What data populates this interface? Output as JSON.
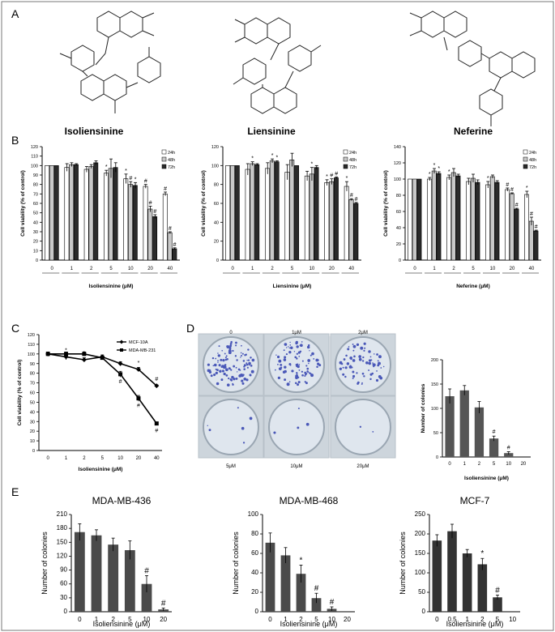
{
  "panels": {
    "A": "A",
    "B": "B",
    "C": "C",
    "D": "D",
    "E": "E"
  },
  "structures": [
    {
      "name": "Isoliensinine"
    },
    {
      "name": "Liensinine"
    },
    {
      "name": "Neferine"
    }
  ],
  "colors": {
    "h24": "#ffffff",
    "h48": "#c8c8c8",
    "h72": "#2a2a2a",
    "bar_gray": "#4a4a4a",
    "bar_dark": "#333333",
    "plate_bg": "#dfe6ee",
    "colony": "#4a58b8"
  },
  "plates": {
    "top_labels": [
      "0",
      "1μM",
      "2μM"
    ],
    "bottom_labels": [
      "5μM",
      "10μM",
      "20μM"
    ]
  },
  "chart_data": [
    {
      "id": "B1",
      "type": "bar",
      "ylabel": "Cell viability (% of control)",
      "xlabel": "Isoliensinine (μM)",
      "categories": [
        "0",
        "1",
        "2",
        "5",
        "10",
        "20",
        "40"
      ],
      "ylim": [
        0,
        120
      ],
      "yticks": [
        0,
        10,
        20,
        30,
        40,
        50,
        60,
        70,
        80,
        90,
        100,
        110,
        120
      ],
      "legend": [
        "24h",
        "48h",
        "72h"
      ],
      "series": [
        {
          "name": "24h",
          "values": [
            100,
            98,
            96,
            92,
            86,
            78,
            70
          ],
          "errors": [
            0,
            4,
            3,
            3,
            5,
            2,
            2
          ]
        },
        {
          "name": "48h",
          "values": [
            100,
            101,
            99,
            97,
            80,
            54,
            29
          ],
          "errors": [
            0,
            2,
            2,
            10,
            3,
            3,
            1
          ]
        },
        {
          "name": "72h",
          "values": [
            100,
            101,
            103,
            98,
            79,
            46,
            12
          ],
          "errors": [
            0,
            1,
            2,
            5,
            3,
            2,
            1
          ]
        }
      ],
      "marks": [
        [
          "",
          "",
          "",
          "*",
          "*",
          "#",
          "#"
        ],
        [
          "",
          "",
          "",
          "",
          "#",
          "#",
          "#"
        ],
        [
          "",
          "",
          "",
          "",
          "*",
          "#",
          "#"
        ]
      ]
    },
    {
      "id": "B2",
      "type": "bar",
      "ylabel": "Cell viability (% of control)",
      "xlabel": "Liensinine (μM)",
      "categories": [
        "0",
        "1",
        "2",
        "5",
        "10",
        "20",
        "40"
      ],
      "ylim": [
        0,
        120
      ],
      "yticks": [
        0,
        20,
        40,
        60,
        80,
        100,
        120
      ],
      "legend": [
        "24h",
        "48h",
        "72h"
      ],
      "series": [
        {
          "name": "24h",
          "values": [
            100,
            96,
            97,
            93,
            89,
            82,
            78
          ],
          "errors": [
            0,
            6,
            6,
            8,
            5,
            3,
            5
          ]
        },
        {
          "name": "48h",
          "values": [
            100,
            102,
            105,
            106,
            91,
            83,
            64
          ],
          "errors": [
            0,
            2,
            2,
            7,
            7,
            3,
            1
          ]
        },
        {
          "name": "72h",
          "values": [
            100,
            101,
            104,
            100,
            98,
            87,
            60
          ],
          "errors": [
            0,
            1,
            1,
            0,
            2,
            1,
            1
          ]
        }
      ],
      "marks": [
        [
          "",
          "",
          "",
          "",
          "",
          "*",
          "*"
        ],
        [
          "",
          "*",
          "*",
          "",
          "*",
          "#",
          "#"
        ],
        [
          "",
          "",
          "*",
          "",
          "",
          "#",
          "#"
        ]
      ]
    },
    {
      "id": "B3",
      "type": "bar",
      "ylabel": "Cell viability (% of control)",
      "xlabel": "Neferine (μM)",
      "categories": [
        "0",
        "1",
        "2",
        "5",
        "10",
        "20",
        "40"
      ],
      "ylim": [
        0,
        140
      ],
      "yticks": [
        0,
        20,
        40,
        60,
        80,
        100,
        120,
        140
      ],
      "legend": [
        "24h",
        "48h",
        "72h"
      ],
      "series": [
        {
          "name": "24h",
          "values": [
            100,
            100,
            102,
            97,
            93,
            87,
            81
          ],
          "errors": [
            0,
            2,
            3,
            4,
            4,
            2,
            4
          ]
        },
        {
          "name": "48h",
          "values": [
            100,
            110,
            108,
            101,
            103,
            82,
            48
          ],
          "errors": [
            0,
            3,
            5,
            5,
            2,
            1,
            5
          ]
        },
        {
          "name": "72h",
          "values": [
            100,
            107,
            104,
            96,
            96,
            63,
            36
          ],
          "errors": [
            0,
            2,
            2,
            3,
            2,
            1,
            1
          ]
        }
      ],
      "marks": [
        [
          "",
          "*",
          "*",
          "",
          "*",
          "#",
          "*"
        ],
        [
          "",
          "*",
          "",
          "",
          "",
          "#",
          "#"
        ],
        [
          "",
          "*",
          "",
          "",
          "",
          "#",
          "#"
        ]
      ]
    },
    {
      "id": "C",
      "type": "line",
      "ylabel": "Cell viability (% of control)",
      "xlabel": "Isoliensinine (μM)",
      "categories": [
        "0",
        "1",
        "2",
        "5",
        "10",
        "20",
        "40"
      ],
      "ylim": [
        0,
        120
      ],
      "yticks": [
        0,
        10,
        20,
        30,
        40,
        50,
        60,
        70,
        80,
        90,
        100,
        110,
        120
      ],
      "series": [
        {
          "name": "MCF-10A",
          "values": [
            100,
            97,
            94,
            97,
            90,
            84,
            67
          ],
          "errors": [
            2,
            3,
            2,
            2,
            2,
            2,
            1
          ]
        },
        {
          "name": "MDA-MB-231",
          "values": [
            100,
            100,
            100,
            96,
            79,
            54,
            28
          ],
          "errors": [
            2,
            2,
            2,
            2,
            3,
            3,
            1
          ]
        }
      ],
      "marks": [
        [
          "",
          "*",
          "*",
          "",
          "",
          "*",
          "#"
        ],
        [
          "",
          "",
          "",
          "",
          "#",
          "#",
          "#"
        ]
      ]
    },
    {
      "id": "D",
      "type": "bar",
      "ylabel": "Number of colonies",
      "xlabel": "Isoliensinine (μM)",
      "categories": [
        "0",
        "1",
        "2",
        "5",
        "10",
        "20"
      ],
      "ylim": [
        0,
        200
      ],
      "yticks": [
        0,
        50,
        100,
        150,
        200
      ],
      "values": [
        125,
        137,
        102,
        38,
        8,
        0
      ],
      "errors": [
        15,
        10,
        12,
        5,
        3,
        0
      ],
      "marks": [
        "",
        "",
        "",
        "#",
        "#",
        ""
      ]
    },
    {
      "id": "E1",
      "type": "bar",
      "title": "MDA-MB-436",
      "ylabel": "Number of colonies",
      "xlabel": "Isoliensinine (μM)",
      "categories": [
        "0",
        "1",
        "2",
        "5",
        "10",
        "20"
      ],
      "ylim": [
        0,
        210
      ],
      "yticks": [
        0,
        30,
        60,
        90,
        120,
        150,
        180,
        210
      ],
      "values": [
        172,
        165,
        145,
        133,
        60,
        5
      ],
      "errors": [
        18,
        12,
        14,
        20,
        18,
        3
      ],
      "marks": [
        "",
        "",
        "",
        "",
        "#",
        "#"
      ]
    },
    {
      "id": "E2",
      "type": "bar",
      "title": "MDA-MB-468",
      "ylabel": "Number of colonies",
      "xlabel": "Isoliensinine (μM)",
      "categories": [
        "0",
        "1",
        "2",
        "5",
        "10",
        "20"
      ],
      "ylim": [
        0,
        100
      ],
      "yticks": [
        0,
        20,
        40,
        60,
        80,
        100
      ],
      "values": [
        71,
        58,
        39,
        14,
        3,
        0
      ],
      "errors": [
        10,
        8,
        9,
        5,
        2,
        0
      ],
      "marks": [
        "",
        "",
        "*",
        "#",
        "#",
        ""
      ]
    },
    {
      "id": "E3",
      "type": "bar",
      "title": "MCF-7",
      "ylabel": "Number of colonies",
      "xlabel": "Isoliensinine (μM)",
      "categories": [
        "0",
        "0.5",
        "1",
        "2",
        "5",
        "10"
      ],
      "ylim": [
        0,
        250
      ],
      "yticks": [
        0,
        50,
        100,
        150,
        200,
        250
      ],
      "values": [
        183,
        207,
        150,
        122,
        37,
        0
      ],
      "errors": [
        15,
        18,
        10,
        15,
        6,
        0
      ],
      "marks": [
        "",
        "",
        "",
        "*",
        "#",
        ""
      ]
    }
  ]
}
